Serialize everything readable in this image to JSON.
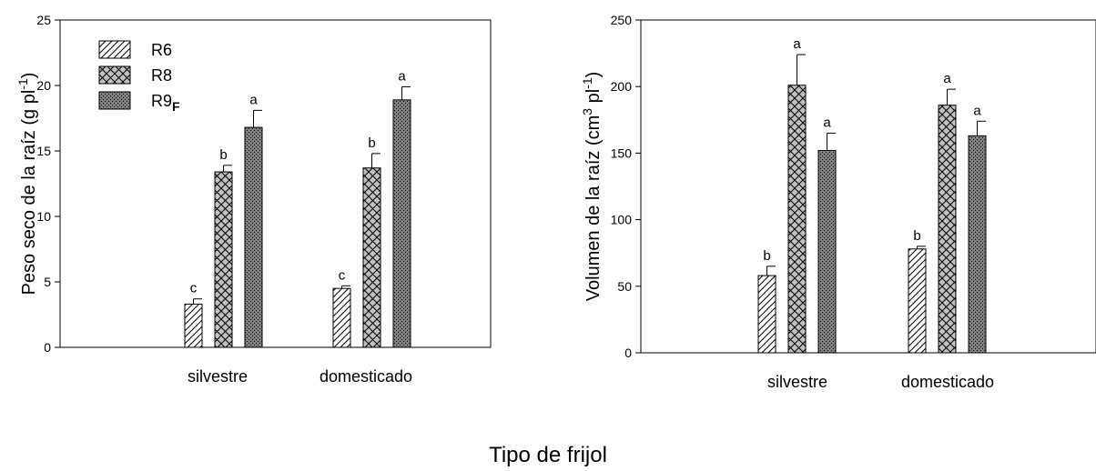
{
  "figure": {
    "xlabel": "Tipo de frijol"
  },
  "legend": [
    {
      "label": "R6",
      "sub": "",
      "pattern": "hatch"
    },
    {
      "label": "R8",
      "sub": "",
      "pattern": "cross"
    },
    {
      "label": "R9",
      "sub": "F",
      "pattern": "dots"
    }
  ],
  "chart_data": [
    {
      "type": "bar",
      "categories": [
        "silvestre",
        "domesticado"
      ],
      "ylabel_main": "Peso seco de la raíz (g pl",
      "ylabel_sup": "-1",
      "ylabel_end": ")",
      "ylim": [
        0,
        25
      ],
      "yticks": [
        0,
        5,
        10,
        15,
        20,
        25
      ],
      "legend_position": "top-left",
      "series": [
        {
          "name": "R6",
          "values": [
            3.3,
            4.5
          ],
          "errors": [
            0.4,
            0.2
          ],
          "letters": [
            "c",
            "c"
          ]
        },
        {
          "name": "R8",
          "values": [
            13.4,
            13.7
          ],
          "errors": [
            0.5,
            1.1
          ],
          "letters": [
            "b",
            "b"
          ]
        },
        {
          "name": "R9F",
          "values": [
            16.8,
            18.9
          ],
          "errors": [
            1.3,
            1.0
          ],
          "letters": [
            "a",
            "a"
          ]
        }
      ]
    },
    {
      "type": "bar",
      "categories": [
        "silvestre",
        "domesticado"
      ],
      "ylabel_main": "Volumen de la raíz (cm",
      "ylabel_sup": "3",
      "ylabel_mid": " pl",
      "ylabel_sup2": "-1",
      "ylabel_end": ")",
      "ylim": [
        0,
        250
      ],
      "yticks": [
        0,
        50,
        100,
        150,
        200,
        250
      ],
      "series": [
        {
          "name": "R6",
          "values": [
            58,
            78
          ],
          "errors": [
            7,
            2
          ],
          "letters": [
            "b",
            "b"
          ]
        },
        {
          "name": "R8",
          "values": [
            201,
            186
          ],
          "errors": [
            23,
            12
          ],
          "letters": [
            "a",
            "a"
          ]
        },
        {
          "name": "R9F",
          "values": [
            152,
            163
          ],
          "errors": [
            13,
            11
          ],
          "letters": [
            "a",
            "a"
          ]
        }
      ]
    }
  ],
  "colors": {
    "r6_fill": "#ffffff",
    "r8_fill": "#c0c0c0",
    "r9_fill": "#808080",
    "stroke": "#000000"
  }
}
